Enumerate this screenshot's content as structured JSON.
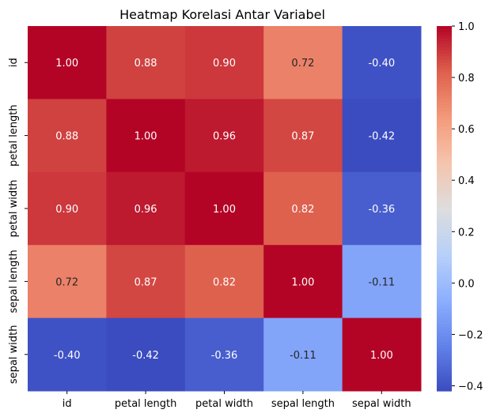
{
  "chart_data": {
    "type": "heatmap",
    "title": "Heatmap Korelasi Antar Variabel",
    "colormap": "coolwarm",
    "rows": [
      "id",
      "petal length",
      "petal width",
      "sepal length",
      "sepal width"
    ],
    "columns": [
      "id",
      "petal length",
      "petal width",
      "sepal length",
      "sepal width"
    ],
    "values": [
      [
        1.0,
        0.88,
        0.9,
        0.72,
        -0.4
      ],
      [
        0.88,
        1.0,
        0.96,
        0.87,
        -0.42
      ],
      [
        0.9,
        0.96,
        1.0,
        0.82,
        -0.36
      ],
      [
        0.72,
        0.87,
        0.82,
        1.0,
        -0.11
      ],
      [
        -0.4,
        -0.42,
        -0.36,
        -0.11,
        1.0
      ]
    ],
    "annotations": [
      [
        "1.00",
        "0.88",
        "0.90",
        "0.72",
        "-0.40"
      ],
      [
        "0.88",
        "1.00",
        "0.96",
        "0.87",
        "-0.42"
      ],
      [
        "0.90",
        "0.96",
        "1.00",
        "0.82",
        "-0.36"
      ],
      [
        "0.72",
        "0.87",
        "0.82",
        "1.00",
        "-0.11"
      ],
      [
        "-0.40",
        "-0.42",
        "-0.36",
        "-0.11",
        "1.00"
      ]
    ],
    "colorbar": {
      "vmin": -0.42,
      "vmax": 1.0,
      "ticks": [
        -0.4,
        -0.2,
        0.0,
        0.2,
        0.4,
        0.6,
        0.8,
        1.0
      ],
      "tick_labels": [
        "−0.4",
        "−0.2",
        "0.0",
        "0.2",
        "0.4",
        "0.6",
        "0.8",
        "1.0"
      ]
    }
  }
}
